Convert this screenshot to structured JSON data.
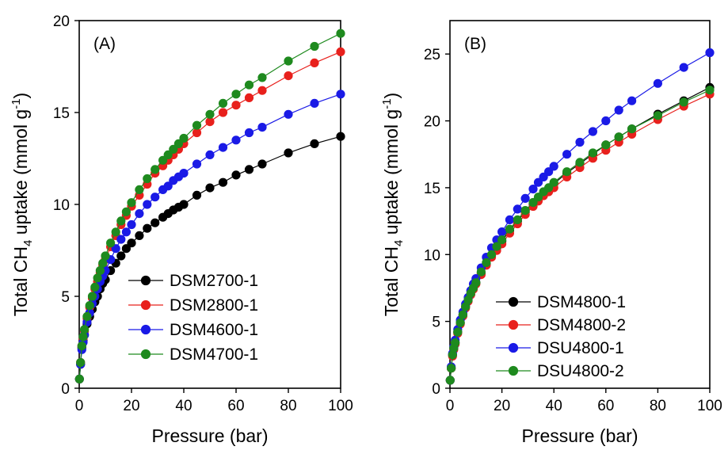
{
  "chart_data": [
    {
      "type": "scatter",
      "panel_label": "(A)",
      "xlabel": "Pressure (bar)",
      "ylabel": {
        "prefix": "Total CH",
        "sub": "4",
        "mid": " uptake (mmol g",
        "sup": "-1",
        "suffix": ")"
      },
      "xlim": [
        0,
        100
      ],
      "ylim": [
        0,
        20
      ],
      "xticks": [
        0,
        20,
        40,
        60,
        80,
        100
      ],
      "yticks": [
        0,
        5,
        10,
        15,
        20
      ],
      "grid": false,
      "legend_position": "bottom-right",
      "series": [
        {
          "name": "DSM2700-1",
          "color": "#000000",
          "x": [
            0.1,
            0.5,
            1,
            1.5,
            2,
            3,
            4,
            5,
            6,
            7,
            8,
            9,
            10,
            12,
            14,
            16,
            18,
            20,
            23,
            26,
            29,
            32,
            34,
            36,
            38,
            40,
            45,
            50,
            55,
            60,
            65,
            70,
            80,
            90,
            100
          ],
          "y": [
            0.5,
            1.3,
            2.2,
            2.6,
            2.9,
            3.5,
            3.9,
            4.3,
            4.7,
            5.0,
            5.4,
            5.7,
            5.9,
            6.4,
            6.8,
            7.2,
            7.6,
            7.9,
            8.3,
            8.7,
            9.0,
            9.3,
            9.5,
            9.7,
            9.85,
            10.0,
            10.5,
            10.9,
            11.2,
            11.6,
            11.9,
            12.2,
            12.8,
            13.3,
            13.7
          ]
        },
        {
          "name": "DSM2800-1",
          "color": "#e8201c",
          "x": [
            0.1,
            0.5,
            1,
            1.5,
            2,
            3,
            4,
            5,
            6,
            7,
            8,
            9,
            10,
            12,
            14,
            16,
            18,
            20,
            23,
            26,
            29,
            32,
            34,
            36,
            38,
            40,
            45,
            50,
            55,
            60,
            65,
            70,
            80,
            90,
            100
          ],
          "y": [
            0.5,
            1.4,
            2.3,
            2.7,
            3.1,
            3.8,
            4.4,
            4.9,
            5.4,
            5.8,
            6.3,
            6.7,
            7.0,
            7.7,
            8.3,
            8.9,
            9.4,
            9.9,
            10.5,
            11.1,
            11.7,
            12.1,
            12.4,
            12.7,
            13.0,
            13.3,
            13.9,
            14.5,
            15.0,
            15.4,
            15.8,
            16.2,
            17.0,
            17.7,
            18.3
          ]
        },
        {
          "name": "DSM4600-1",
          "color": "#1a1ae6",
          "x": [
            0.1,
            0.5,
            1,
            1.5,
            2,
            3,
            4,
            5,
            6,
            7,
            8,
            9,
            10,
            12,
            14,
            16,
            18,
            20,
            23,
            26,
            29,
            32,
            34,
            36,
            38,
            40,
            45,
            50,
            55,
            60,
            65,
            70,
            80,
            90,
            100
          ],
          "y": [
            0.5,
            1.3,
            2.1,
            2.5,
            2.9,
            3.6,
            4.1,
            4.6,
            5.0,
            5.4,
            5.8,
            6.1,
            6.4,
            7.0,
            7.6,
            8.1,
            8.5,
            8.9,
            9.5,
            10.0,
            10.4,
            10.8,
            11.0,
            11.3,
            11.5,
            11.7,
            12.2,
            12.7,
            13.1,
            13.5,
            13.9,
            14.2,
            14.9,
            15.5,
            16.0
          ]
        },
        {
          "name": "DSM4700-1",
          "color": "#1e8a1e",
          "x": [
            0.1,
            0.5,
            1,
            1.5,
            2,
            3,
            4,
            5,
            6,
            7,
            8,
            9,
            10,
            12,
            14,
            16,
            18,
            20,
            23,
            26,
            29,
            32,
            34,
            36,
            38,
            40,
            45,
            50,
            55,
            60,
            65,
            70,
            80,
            90,
            100
          ],
          "y": [
            0.5,
            1.4,
            2.3,
            2.8,
            3.2,
            3.9,
            4.5,
            5.0,
            5.5,
            6.0,
            6.4,
            6.8,
            7.2,
            7.9,
            8.5,
            9.1,
            9.6,
            10.1,
            10.8,
            11.4,
            11.9,
            12.4,
            12.7,
            13.0,
            13.3,
            13.6,
            14.3,
            14.9,
            15.5,
            16.0,
            16.5,
            16.9,
            17.8,
            18.6,
            19.3
          ]
        }
      ]
    },
    {
      "type": "scatter",
      "panel_label": "(B)",
      "xlabel": "Pressure (bar)",
      "ylabel": {
        "prefix": "Total CH",
        "sub": "4",
        "mid": " uptake (mmol g",
        "sup": "-1",
        "suffix": ")"
      },
      "xlim": [
        0,
        100
      ],
      "ylim": [
        0,
        27.5
      ],
      "xticks": [
        0,
        20,
        40,
        60,
        80,
        100
      ],
      "yticks": [
        0,
        5,
        10,
        15,
        20,
        25
      ],
      "grid": false,
      "legend_position": "bottom-right",
      "series": [
        {
          "name": "DSM4800-1",
          "color": "#000000",
          "x": [
            0.1,
            0.5,
            1,
            1.5,
            2,
            3,
            4,
            5,
            6,
            7,
            8,
            9,
            10,
            12,
            14,
            16,
            18,
            20,
            23,
            26,
            29,
            32,
            34,
            36,
            38,
            40,
            45,
            50,
            55,
            60,
            65,
            70,
            80,
            90,
            100
          ],
          "y": [
            0.6,
            1.5,
            2.5,
            3.0,
            3.4,
            4.2,
            4.9,
            5.5,
            6.1,
            6.6,
            7.0,
            7.5,
            7.9,
            8.6,
            9.3,
            9.9,
            10.5,
            11.0,
            11.8,
            12.5,
            13.2,
            13.8,
            14.2,
            14.6,
            14.9,
            15.3,
            16.1,
            16.8,
            17.5,
            18.2,
            18.8,
            19.4,
            20.5,
            21.5,
            22.5
          ]
        },
        {
          "name": "DSM4800-2",
          "color": "#e8201c",
          "x": [
            0.1,
            0.5,
            1,
            1.5,
            2,
            3,
            4,
            5,
            6,
            7,
            8,
            9,
            10,
            12,
            14,
            16,
            18,
            20,
            23,
            26,
            29,
            32,
            34,
            36,
            38,
            40,
            45,
            50,
            55,
            60,
            65,
            70,
            80,
            90,
            100
          ],
          "y": [
            0.6,
            1.5,
            2.4,
            2.9,
            3.3,
            4.1,
            4.8,
            5.4,
            6.0,
            6.5,
            7.0,
            7.4,
            7.8,
            8.5,
            9.2,
            9.8,
            10.3,
            10.8,
            11.6,
            12.3,
            13.0,
            13.6,
            14.0,
            14.4,
            14.7,
            15.0,
            15.8,
            16.5,
            17.2,
            17.8,
            18.4,
            19.0,
            20.1,
            21.1,
            22.0
          ]
        },
        {
          "name": "DSU4800-1",
          "color": "#1a1ae6",
          "x": [
            0.1,
            0.5,
            1,
            1.5,
            2,
            3,
            4,
            5,
            6,
            7,
            8,
            9,
            10,
            12,
            14,
            16,
            18,
            20,
            23,
            26,
            29,
            32,
            34,
            36,
            38,
            40,
            45,
            50,
            55,
            60,
            65,
            70,
            80,
            90,
            100
          ],
          "y": [
            0.6,
            1.6,
            2.6,
            3.1,
            3.6,
            4.4,
            5.1,
            5.7,
            6.3,
            6.8,
            7.3,
            7.8,
            8.2,
            9.0,
            9.8,
            10.5,
            11.1,
            11.7,
            12.6,
            13.4,
            14.2,
            14.9,
            15.4,
            15.8,
            16.2,
            16.6,
            17.5,
            18.4,
            19.2,
            20.0,
            20.8,
            21.5,
            22.8,
            24.0,
            25.1
          ]
        },
        {
          "name": "DSU4800-2",
          "color": "#1e8a1e",
          "x": [
            0.1,
            0.5,
            1,
            1.5,
            2,
            3,
            4,
            5,
            6,
            7,
            8,
            9,
            10,
            12,
            14,
            16,
            18,
            20,
            23,
            26,
            29,
            32,
            34,
            36,
            38,
            40,
            45,
            50,
            55,
            60,
            65,
            70,
            80,
            90,
            100
          ],
          "y": [
            0.6,
            1.5,
            2.5,
            3.0,
            3.4,
            4.2,
            4.9,
            5.5,
            6.1,
            6.6,
            7.1,
            7.5,
            7.9,
            8.7,
            9.4,
            10.0,
            10.6,
            11.1,
            11.9,
            12.6,
            13.3,
            13.9,
            14.3,
            14.7,
            15.0,
            15.4,
            16.2,
            16.9,
            17.6,
            18.2,
            18.8,
            19.4,
            20.4,
            21.4,
            22.3
          ]
        }
      ]
    }
  ]
}
